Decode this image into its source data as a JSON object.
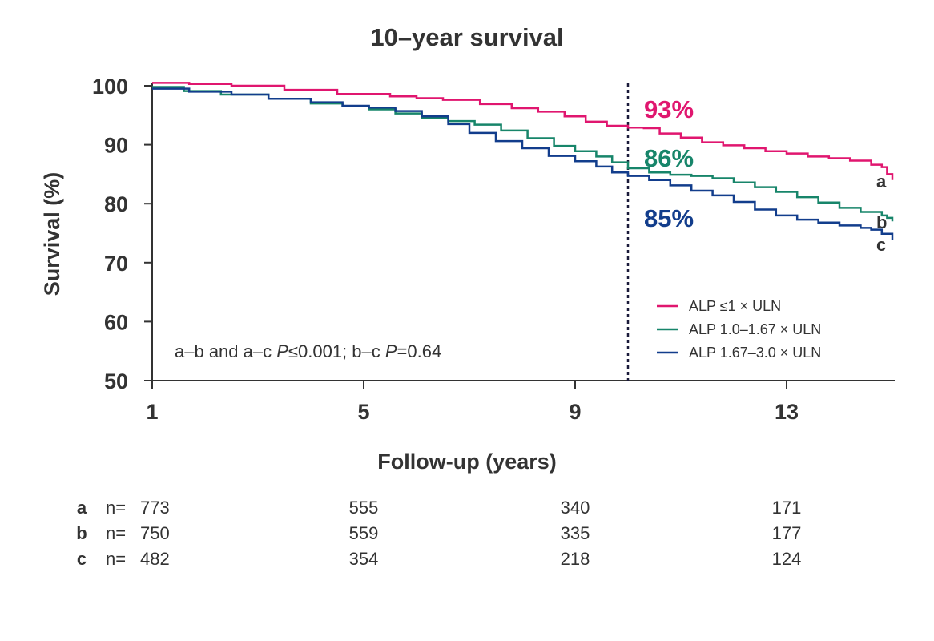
{
  "chart_data": {
    "type": "line",
    "step": true,
    "title": "10–year survival",
    "xlabel": "Follow-up (years)",
    "ylabel": "Survival (%)",
    "xlim": [
      1,
      15.2
    ],
    "ylim": [
      50,
      100
    ],
    "xticks": [
      "1",
      "5",
      "9",
      "13"
    ],
    "yticks": [
      "50",
      "60",
      "70",
      "80",
      "90",
      "100"
    ],
    "grid": false,
    "reference_line_x": 10,
    "legend_position": "lower-right",
    "annotation": {
      "text_a": "a–b and a–c ",
      "p1": "P",
      "text_b": "≤0.001; b–c ",
      "p2": "P",
      "text_c": "=0.64"
    },
    "series": [
      {
        "key": "a",
        "name": "ALP ≤1 × ULN",
        "color": "#E0166F",
        "end_label": "a",
        "pct_at_10y": "93%",
        "x": [
          1,
          1.7,
          2.5,
          3.5,
          4.5,
          5.5,
          6,
          6.5,
          7.2,
          7.8,
          8.3,
          8.8,
          9.2,
          9.6,
          10,
          10.3,
          10.6,
          11,
          11.4,
          11.8,
          12.2,
          12.6,
          13,
          13.4,
          13.8,
          14.2,
          14.6,
          14.8,
          14.9,
          15
        ],
        "y": [
          100.5,
          100.3,
          100.0,
          99.3,
          98.6,
          98.2,
          97.9,
          97.6,
          96.9,
          96.2,
          95.6,
          94.8,
          93.9,
          93.2,
          92.9,
          92.8,
          91.9,
          91.2,
          90.4,
          89.9,
          89.4,
          88.9,
          88.5,
          88.0,
          87.7,
          87.3,
          86.6,
          86.2,
          85.0,
          84.0
        ]
      },
      {
        "key": "b",
        "name": "ALP 1.0–1.67 × ULN",
        "color": "#17856A",
        "end_label": "b",
        "pct_at_10y": "86%",
        "x": [
          1,
          1.6,
          2.3,
          3.2,
          4,
          4.6,
          5.1,
          5.6,
          6.1,
          6.6,
          7.1,
          7.6,
          8.1,
          8.6,
          9,
          9.4,
          9.7,
          10,
          10.4,
          10.8,
          11.2,
          11.6,
          12,
          12.4,
          12.8,
          13.2,
          13.6,
          14,
          14.4,
          14.8,
          14.9,
          15
        ],
        "y": [
          99.8,
          99.1,
          98.5,
          97.8,
          97.0,
          96.5,
          96.0,
          95.3,
          94.6,
          94.0,
          93.4,
          92.4,
          91.1,
          89.8,
          88.9,
          88.0,
          87.0,
          86.0,
          85.3,
          84.9,
          84.7,
          84.3,
          83.6,
          82.8,
          82.0,
          81.1,
          80.2,
          79.3,
          78.6,
          78.0,
          77.6,
          77.0
        ]
      },
      {
        "key": "c",
        "name": "ALP 1.67–3.0 × ULN",
        "color": "#123D8C",
        "end_label": "c",
        "pct_at_10y": "85%",
        "x": [
          1,
          1.7,
          2.5,
          3.2,
          4,
          4.6,
          5.1,
          5.6,
          6.1,
          6.6,
          7,
          7.5,
          8,
          8.5,
          9,
          9.4,
          9.7,
          10,
          10.4,
          10.8,
          11.2,
          11.6,
          12,
          12.4,
          12.8,
          13.2,
          13.6,
          14,
          14.4,
          14.6,
          14.8,
          15
        ],
        "y": [
          99.5,
          99.0,
          98.5,
          97.8,
          97.2,
          96.6,
          96.3,
          95.7,
          94.8,
          93.5,
          92.0,
          90.6,
          89.4,
          88.1,
          87.2,
          86.3,
          85.3,
          84.7,
          84.0,
          83.1,
          82.2,
          81.4,
          80.3,
          79.0,
          78.0,
          77.3,
          76.8,
          76.3,
          75.9,
          75.6,
          74.9,
          73.9
        ]
      }
    ]
  },
  "risk_table": {
    "prefix": "n=",
    "rows": [
      {
        "group": "a",
        "values": [
          "773",
          "555",
          "340",
          "171"
        ]
      },
      {
        "group": "b",
        "values": [
          "750",
          "559",
          "335",
          "177"
        ]
      },
      {
        "group": "c",
        "values": [
          "482",
          "354",
          "218",
          "124"
        ]
      }
    ]
  },
  "colors": {
    "text": "#333333",
    "axis": "#333333",
    "dashed_line": "#1A1A3A"
  }
}
